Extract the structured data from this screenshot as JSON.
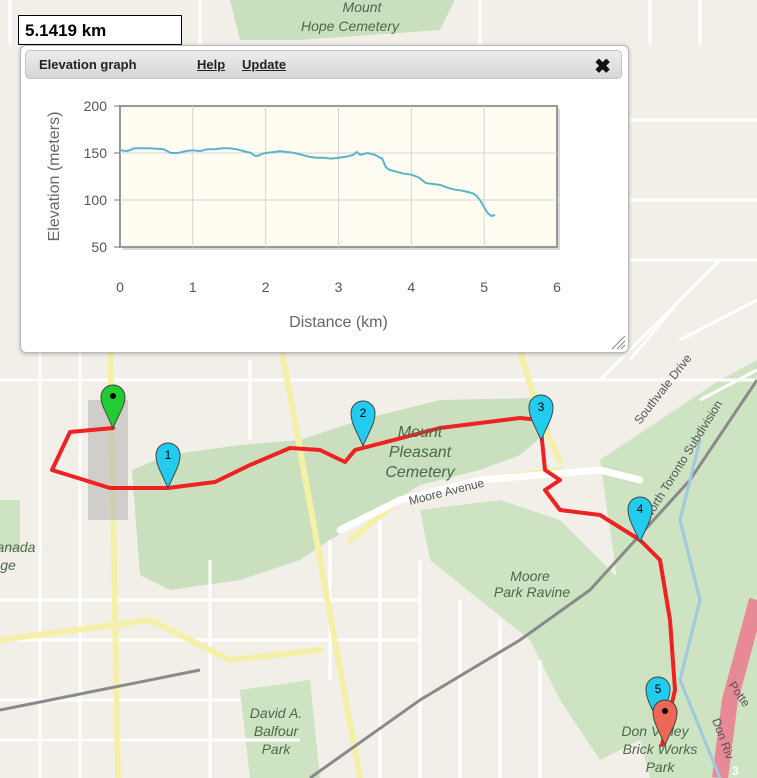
{
  "distance_readout": "5.1419 km",
  "panel": {
    "title": "Elevation graph",
    "help_label": "Help",
    "update_label": "Update",
    "close_icon": "close-icon"
  },
  "chart_data": {
    "type": "line",
    "xlabel": "Distance (km)",
    "ylabel": "Elevation (meters)",
    "xlim": [
      0,
      6
    ],
    "ylim": [
      50,
      200
    ],
    "xticks": [
      0,
      1,
      2,
      3,
      4,
      5,
      6
    ],
    "yticks": [
      50,
      100,
      150,
      200
    ],
    "grid": true,
    "line_color": "#5ab4cc",
    "plot_background": "#fffcf2",
    "series": [
      {
        "x": [
          0,
          0.1,
          0.2,
          0.4,
          0.6,
          0.7,
          0.8,
          0.9,
          1.0,
          1.1,
          1.2,
          1.3,
          1.4,
          1.5,
          1.6,
          1.7,
          1.8,
          1.85,
          1.9,
          1.95,
          2.0,
          2.1,
          2.2,
          2.4,
          2.5,
          2.6,
          2.7,
          2.8,
          2.9,
          3.0,
          3.1,
          3.2,
          3.25,
          3.3,
          3.35,
          3.4,
          3.5,
          3.6,
          3.65,
          3.7,
          3.8,
          3.9,
          4.0,
          4.1,
          4.15,
          4.2,
          4.3,
          4.4,
          4.5,
          4.6,
          4.7,
          4.8,
          4.85,
          4.9,
          4.95,
          5.0,
          5.05,
          5.1,
          5.15
        ],
        "y": [
          153,
          152,
          155,
          155,
          154,
          150,
          150,
          152,
          153,
          152,
          154,
          154,
          155,
          155,
          154,
          152,
          150,
          147,
          147,
          149,
          150,
          151,
          152,
          150,
          148,
          146,
          145,
          145,
          144,
          145,
          146,
          148,
          151,
          148,
          149,
          150,
          148,
          144,
          135,
          132,
          130,
          128,
          127,
          124,
          121,
          118,
          117,
          116,
          113,
          111,
          110,
          108,
          107,
          104,
          99,
          92,
          86,
          83,
          84
        ]
      }
    ]
  },
  "map": {
    "labels": {
      "mount_hope": [
        "Mount",
        "Hope Cemetery"
      ],
      "mount_pleasant": [
        "Mount",
        "Pleasant",
        "Cemetery"
      ],
      "moore_avenue": "Moore Avenue",
      "moore_park_ravine": [
        "Moore",
        "Park Ravine"
      ],
      "david_balfour": [
        "David A.",
        "Balfour",
        "Park"
      ],
      "evergreen_brick_works": [
        "Don Valley",
        "Brick Works",
        "Park"
      ],
      "southvale": "Southvale Drive",
      "north_toronto": "North Toronto Subdivision",
      "canada_fragment": [
        "anada",
        "ge"
      ],
      "potter_fragment": "Potte",
      "don_river_fragment": "Don Riv",
      "route_3": "3"
    },
    "markers": [
      {
        "label": "1",
        "kind": "cyan"
      },
      {
        "label": "2",
        "kind": "cyan"
      },
      {
        "label": "3",
        "kind": "cyan"
      },
      {
        "label": "4",
        "kind": "cyan"
      },
      {
        "label": "5",
        "kind": "cyan"
      }
    ],
    "colors": {
      "route": "#ee2222",
      "marker_cyan": "#22ccee",
      "marker_start": "#22cc33",
      "marker_end": "#ee6655",
      "park": "#c9dfbe",
      "road_major": "#f8fab8",
      "road_minor": "#ffffff"
    }
  }
}
